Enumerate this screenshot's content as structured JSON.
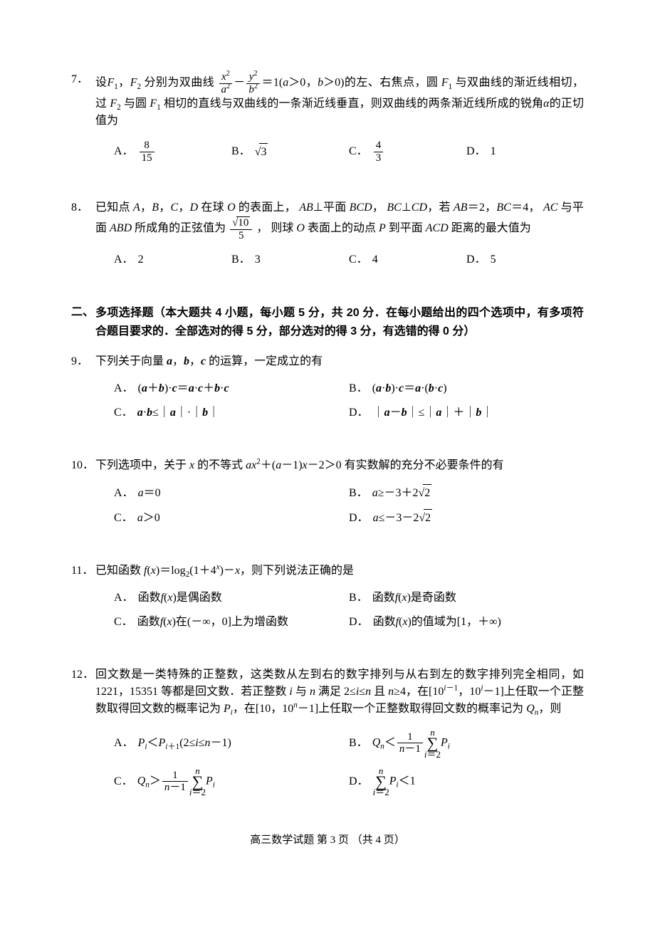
{
  "q7": {
    "num": "7．",
    "stem_a": "设",
    "f1": "F",
    "f1s": "1",
    "sep1": "，",
    "f2": "F",
    "f2s": "2",
    "stem_b": "分别为双曲线",
    "frac1_num_a": "x",
    "frac1_num_sup": "2",
    "frac1_den_a": "a",
    "frac1_den_sup": "2",
    "minus": "－",
    "frac2_num_a": "y",
    "frac2_num_sup": "2",
    "frac2_den_a": "b",
    "frac2_den_sup": "2",
    "eq1": "＝1(",
    "a": "a",
    "gt1": "＞0，",
    "b": "b",
    "gt2": "＞0)的左、右焦点，圆",
    "f1b": "F",
    "f1bs": "1",
    "stem_c": "与双曲线的渐近线相切，过",
    "line2_a": "F",
    "line2_as": "2",
    "line2_b": "与圆",
    "line2_c": "F",
    "line2_cs": "1",
    "line2_d": "相切的直线与双曲线的一条渐近线垂直，则双曲线的两条渐近线所成的锐角",
    "alpha": "α",
    "line2_e": "的正切值为",
    "opts": {
      "A": {
        "label": "A．",
        "frac_num": "8",
        "frac_den": "15"
      },
      "B": {
        "label": "B．",
        "sqrt": "3"
      },
      "C": {
        "label": "C．",
        "frac_num": "4",
        "frac_den": "3"
      },
      "D": {
        "label": "D．",
        "val": "1"
      }
    }
  },
  "q8": {
    "num": "8．",
    "stem_a": "已知点",
    "pts": "A",
    "c1": "，",
    "ptB": "B",
    "c2": "，",
    "ptC": "C",
    "c3": "，",
    "ptD": "D",
    "stem_b": " 在球 ",
    "O": "O",
    "stem_c": " 的表面上，",
    "AB": "AB",
    "perp1": "⊥平面 ",
    "BCD": "BCD",
    "c4": "，",
    "BC": "BC",
    "perp2": "⊥",
    "CD": "CD",
    "c5": "，若 ",
    "ABv": "AB",
    "eq1": "＝2，",
    "BCv": "BC",
    "eq2": "＝4，",
    "AC": "AC",
    "stem_d": " 与平面",
    "line2_a": "ABD",
    "line2_b": " 所成角的正弦值为",
    "frac_num_sqrt": "10",
    "frac_den": "5",
    "line2_c": "， 则球 ",
    "O2": "O",
    "line2_d": " 表面上的动点 ",
    "P": "P",
    "line2_e": " 到平面 ",
    "ACD": "ACD",
    "line2_f": " 距离的最大值为",
    "opts": {
      "A": {
        "label": "A．",
        "val": "2"
      },
      "B": {
        "label": "B．",
        "val": " 3"
      },
      "C": {
        "label": "C．",
        "val": " 4"
      },
      "D": {
        "label": "D．",
        "val": " 5"
      }
    }
  },
  "section2": {
    "num": "二、",
    "text": "多项选择题（本大题共 4 小题，每小题 5 分，共 20 分．在每小题给出的四个选项中，有多项符合题目要求的．全部选对的得 5 分，部分选对的得 3 分，有选错的得 0 分）"
  },
  "q9": {
    "num": "9．",
    "stem_a": "下列关于向量 ",
    "a": "a",
    "c1": "，",
    "b": "b",
    "c2": "，",
    "c": "c",
    "stem_b": " 的运算，一定成立的有",
    "opts": {
      "A": {
        "label": "A．",
        "pre": "(",
        "a": "a",
        "plus": "＋",
        "b": "b",
        "post": ")·",
        "c": "c",
        "eq": "＝",
        "a2": "a",
        "dot1": "·",
        "c2": "c",
        "plus2": "＋",
        "b2": "b",
        "dot2": "·",
        "c3": "c"
      },
      "B": {
        "label": "B．",
        "pre": "(",
        "a": "a",
        "dot1": "·",
        "b": "b",
        "post": ")·",
        "c": "c",
        "eq": "＝",
        "a2": "a",
        "dot2": "·(",
        "b2": "b",
        "dot3": "·",
        "c2": "c",
        "end": ")"
      },
      "C": {
        "label": "C．",
        "a": "a",
        "dot": "·",
        "b": "b",
        "le": "≤｜",
        "a2": "a",
        "m1": "｜·｜",
        "b2": "b",
        "m2": "｜"
      },
      "D": {
        "label": "D．",
        "pre": "｜",
        "a": "a",
        "minus": "－",
        "b": "b",
        "m1": "｜≤｜",
        "a2": "a",
        "m2": "｜＋｜",
        "b2": "b",
        "m3": "｜"
      }
    }
  },
  "q10": {
    "num": "10．",
    "stem_a": "下列选项中，关于 ",
    "x": "x",
    "stem_b": " 的不等式 ",
    "a": "a",
    "x2": "x",
    "sup2": "2",
    "plus": "＋(",
    "a2": "a",
    "stem_c": "－1)",
    "x3": "x",
    "stem_d": "－2＞0 有实数解的充分不必要条件的有",
    "opts": {
      "A": {
        "label": "A．",
        "a": "a",
        "val": "＝0"
      },
      "B": {
        "label": "B．",
        "a": "a",
        "ge": "≥－3＋2",
        "sqrt": "2"
      },
      "C": {
        "label": "C．",
        "a": "a",
        "val": "＞0"
      },
      "D": {
        "label": "D．",
        "a": "a",
        "le": "≤－3－2",
        "sqrt": "2"
      }
    }
  },
  "q11": {
    "num": "11．",
    "stem_a": "已知函数 ",
    "f": "f",
    "x": "x",
    "stem_b": "(",
    "stem_c": ")＝log",
    "sub2": "2",
    "stem_d": "(1＋4",
    "supx": "x",
    "stem_e": ")－",
    "x2": "x",
    "stem_f": "，则下列说法正确的是",
    "opts": {
      "A": {
        "label": "A．",
        "t1": "函数 ",
        "f": "f",
        "p1": "(",
        "x": "x",
        "p2": ")是偶函数"
      },
      "B": {
        "label": "B．",
        "t1": "函数 ",
        "f": "f",
        "p1": "(",
        "x": "x",
        "p2": ")是奇函数"
      },
      "C": {
        "label": "C．",
        "t1": "函数 ",
        "f": "f",
        "p1": "(",
        "x": "x",
        "p2": ")在(－∞，0]上为增函数"
      },
      "D": {
        "label": "D．",
        "t1": "函数 ",
        "f": "f",
        "p1": "(",
        "x": "x",
        "p2": ")的值域为[1，＋∞)"
      }
    }
  },
  "q12": {
    "num": "12．",
    "stem": "回文数是一类特殊的正整数，这类数从左到右的数字排列与从右到左的数字排列完全相同，如1221，15351 等都是回文数．若正整数 ",
    "i": "i",
    "and": " 与 ",
    "n": "n",
    "sat": " 满足 2≤",
    "i2": "i",
    "le": "≤",
    "n2": "n",
    "and2": " 且 ",
    "n3": "n",
    "ge": "≥4，在[10",
    "sup1a": "i",
    "sup1b": "－1",
    "c1": "，10",
    "sup2": "i",
    "c2": "－1]上任取一个正整数取得回文数的概率记为 ",
    "Pi": "P",
    "Pisub": "i",
    "c3": "，在[10，10",
    "sup3": "n",
    "c4": "－1]上任取一个正整数取得回文数的概率记为",
    "Qn": "Q",
    "Qnsub": "n",
    "c5": "，则",
    "opts": {
      "A": {
        "label": "A．",
        "P": "P",
        "isub": "i",
        "lt": "＜",
        "P2": "P",
        "i1": "i",
        "p1": "＋1",
        "range": "(2≤",
        "i2": "i",
        "le": "≤",
        "n": "n",
        "end": "－1)"
      },
      "B": {
        "label": "B．",
        "Q": "Q",
        "n": "n",
        "lt": "＜",
        "frac_num": "1",
        "frac_den_a": "n",
        "frac_den_b": "－1",
        "sum_top": "n",
        "sum_bot_a": "i",
        "sum_bot_b": "＝2",
        "P": "P",
        "isub": "i"
      },
      "C": {
        "label": "C．",
        "Q": "Q",
        "n": "n",
        "gt": "＞",
        "frac_num": "1",
        "frac_den_a": "n",
        "frac_den_b": "－1",
        "sum_top": "n",
        "sum_bot_a": "i",
        "sum_bot_b": "＝2",
        "P": "P",
        "isub": "i"
      },
      "D": {
        "label": "D．",
        "sum_top": "n",
        "sum_bot_a": "i",
        "sum_bot_b": "＝2",
        "P": "P",
        "isub": "i",
        "lt": "＜1"
      }
    }
  },
  "footer": "高三数学试题 第 3 页 （共 4 页）"
}
